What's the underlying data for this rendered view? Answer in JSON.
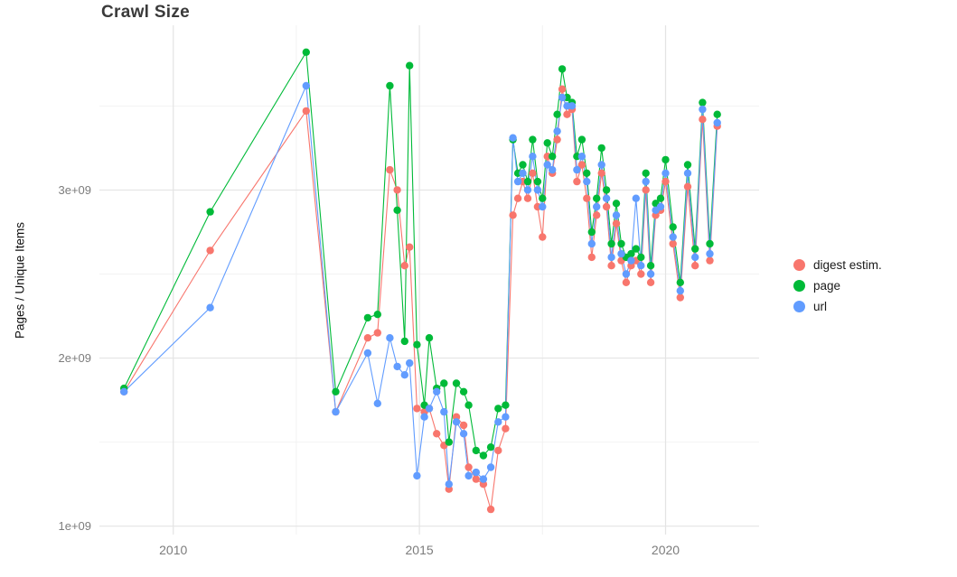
{
  "page": {
    "background_color": "#ffffff"
  },
  "chart": {
    "title": "Crawl Size",
    "ylabel": "Pages / Unique Items"
  },
  "chart_data": {
    "type": "line",
    "title": "Crawl Size",
    "xlabel": "",
    "ylabel": "Pages / Unique Items",
    "value_scale_note": "y values are in units of 1e+09 (billions), read from axis",
    "grid": true,
    "legend_position": "right",
    "xlim": [
      2008.5,
      2021.9
    ],
    "ylim": [
      0.95,
      3.98
    ],
    "x_ticks": [
      {
        "value": 2010,
        "label": "2010"
      },
      {
        "value": 2015,
        "label": "2015"
      },
      {
        "value": 2020,
        "label": "2020"
      }
    ],
    "y_ticks": [
      {
        "value": 1.0,
        "label": "1e+09"
      },
      {
        "value": 2.0,
        "label": "2e+09"
      },
      {
        "value": 3.0,
        "label": "3e+09"
      }
    ],
    "x_minor": [
      2012.5,
      2017.5
    ],
    "y_minor": [
      1.5,
      2.5,
      3.5
    ],
    "x": [
      2009.0,
      2010.75,
      2012.7,
      2013.3,
      2013.95,
      2014.15,
      2014.4,
      2014.55,
      2014.7,
      2014.8,
      2014.95,
      2015.1,
      2015.2,
      2015.35,
      2015.5,
      2015.6,
      2015.75,
      2015.9,
      2016.0,
      2016.15,
      2016.3,
      2016.45,
      2016.6,
      2016.75,
      2016.9,
      2017.0,
      2017.1,
      2017.2,
      2017.3,
      2017.4,
      2017.5,
      2017.6,
      2017.7,
      2017.8,
      2017.9,
      2018.0,
      2018.1,
      2018.2,
      2018.3,
      2018.4,
      2018.5,
      2018.6,
      2018.7,
      2018.8,
      2018.9,
      2019.0,
      2019.1,
      2019.2,
      2019.3,
      2019.4,
      2019.5,
      2019.6,
      2019.7,
      2019.8,
      2019.9,
      2020.0,
      2020.15,
      2020.3,
      2020.45,
      2020.6,
      2020.75,
      2020.9,
      2021.05
    ],
    "series": [
      {
        "name": "digest estim.",
        "color": "#F8766D",
        "values": [
          1.8,
          2.64,
          3.47,
          1.68,
          2.12,
          2.15,
          3.12,
          3.0,
          2.55,
          2.66,
          1.7,
          1.68,
          1.7,
          1.55,
          1.48,
          1.22,
          1.65,
          1.6,
          1.35,
          1.28,
          1.25,
          1.1,
          1.45,
          1.58,
          2.85,
          2.95,
          3.05,
          2.95,
          3.1,
          2.9,
          2.72,
          3.2,
          3.1,
          3.3,
          3.6,
          3.45,
          3.48,
          3.05,
          3.15,
          2.95,
          2.6,
          2.85,
          3.1,
          2.9,
          2.55,
          2.8,
          2.58,
          2.45,
          2.55,
          2.58,
          2.5,
          3.0,
          2.45,
          2.85,
          2.88,
          3.05,
          2.68,
          2.36,
          3.02,
          2.55,
          3.42,
          2.58,
          3.38
        ]
      },
      {
        "name": "page",
        "color": "#00BA38",
        "values": [
          1.82,
          2.87,
          3.82,
          1.8,
          2.24,
          2.26,
          3.62,
          2.88,
          2.1,
          3.74,
          2.08,
          1.72,
          2.12,
          1.82,
          1.85,
          1.5,
          1.85,
          1.8,
          1.72,
          1.45,
          1.42,
          1.47,
          1.7,
          1.72,
          3.3,
          3.1,
          3.15,
          3.05,
          3.3,
          3.05,
          2.95,
          3.28,
          3.2,
          3.45,
          3.72,
          3.55,
          3.52,
          3.2,
          3.3,
          3.1,
          2.75,
          2.95,
          3.25,
          3.0,
          2.68,
          2.92,
          2.68,
          2.6,
          2.62,
          2.65,
          2.6,
          3.1,
          2.55,
          2.92,
          2.95,
          3.18,
          2.78,
          2.45,
          3.15,
          2.65,
          3.52,
          2.68,
          3.45
        ]
      },
      {
        "name": "url",
        "color": "#619CFF",
        "values": [
          1.8,
          2.3,
          3.62,
          1.68,
          2.03,
          1.73,
          2.12,
          1.95,
          1.9,
          1.97,
          1.3,
          1.65,
          1.7,
          1.8,
          1.68,
          1.25,
          1.62,
          1.55,
          1.3,
          1.32,
          1.28,
          1.35,
          1.62,
          1.65,
          3.31,
          3.05,
          3.1,
          3.0,
          3.2,
          3.0,
          2.9,
          3.15,
          3.12,
          3.35,
          3.55,
          3.5,
          3.5,
          3.12,
          3.2,
          3.05,
          2.68,
          2.9,
          3.15,
          2.95,
          2.6,
          2.85,
          2.62,
          2.5,
          2.58,
          2.95,
          2.55,
          3.05,
          2.5,
          2.88,
          2.9,
          3.1,
          2.72,
          2.4,
          3.1,
          2.6,
          3.48,
          2.62,
          3.4
        ]
      }
    ],
    "style": {
      "grid_major_color": "#e4e4e4",
      "grid_minor_color": "#f2f2f2",
      "tick_label_color": "#7c7c7c",
      "point_radius": 4.2,
      "line_width": 1.1
    }
  }
}
